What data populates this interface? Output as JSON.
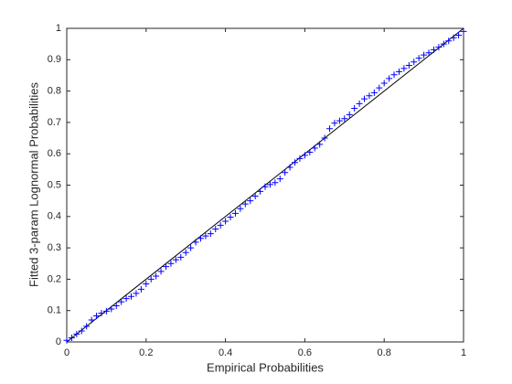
{
  "chart_data": {
    "type": "scatter",
    "xlabel": "Empirical Probabilities",
    "ylabel": "Fitted 3-param Lognormal Probabilities",
    "xlim": [
      0,
      1
    ],
    "ylim": [
      0,
      1
    ],
    "xticks": [
      0,
      0.2,
      0.4,
      0.6,
      0.8,
      1
    ],
    "yticks": [
      0,
      0.1,
      0.2,
      0.3,
      0.4,
      0.5,
      0.6,
      0.7,
      0.8,
      0.9,
      1
    ],
    "grid": false,
    "reference_line": {
      "x": [
        0,
        1
      ],
      "y": [
        0,
        1
      ],
      "color": "#000000"
    },
    "series": [
      {
        "name": "Data",
        "color": "#0000ff",
        "marker": "+",
        "x": [
          0,
          0.0125,
          0.025,
          0.0375,
          0.05,
          0.0625,
          0.075,
          0.0875,
          0.1,
          0.1125,
          0.125,
          0.1375,
          0.15,
          0.1625,
          0.175,
          0.1875,
          0.2,
          0.2125,
          0.225,
          0.2375,
          0.25,
          0.2625,
          0.275,
          0.2875,
          0.3,
          0.3125,
          0.325,
          0.3375,
          0.35,
          0.3625,
          0.375,
          0.3875,
          0.4,
          0.4125,
          0.425,
          0.4375,
          0.45,
          0.4625,
          0.475,
          0.4875,
          0.5,
          0.5125,
          0.525,
          0.5375,
          0.55,
          0.5625,
          0.575,
          0.5875,
          0.6,
          0.6125,
          0.625,
          0.6375,
          0.65,
          0.6625,
          0.675,
          0.6875,
          0.7,
          0.7125,
          0.725,
          0.7375,
          0.75,
          0.7625,
          0.775,
          0.7875,
          0.8,
          0.8125,
          0.825,
          0.8375,
          0.85,
          0.8625,
          0.875,
          0.8875,
          0.9,
          0.9125,
          0.925,
          0.9375,
          0.95,
          0.9625,
          0.975,
          0.9875,
          1
        ],
        "values": [
          0.005,
          0.013,
          0.025,
          0.035,
          0.05,
          0.07,
          0.083,
          0.092,
          0.098,
          0.105,
          0.115,
          0.128,
          0.138,
          0.145,
          0.155,
          0.168,
          0.185,
          0.2,
          0.21,
          0.225,
          0.24,
          0.25,
          0.262,
          0.27,
          0.285,
          0.3,
          0.318,
          0.33,
          0.338,
          0.345,
          0.36,
          0.372,
          0.385,
          0.398,
          0.41,
          0.425,
          0.44,
          0.45,
          0.465,
          0.48,
          0.495,
          0.502,
          0.508,
          0.52,
          0.54,
          0.557,
          0.572,
          0.585,
          0.595,
          0.605,
          0.618,
          0.63,
          0.65,
          0.68,
          0.698,
          0.705,
          0.712,
          0.725,
          0.745,
          0.76,
          0.775,
          0.785,
          0.795,
          0.81,
          0.825,
          0.84,
          0.852,
          0.862,
          0.872,
          0.882,
          0.893,
          0.905,
          0.915,
          0.922,
          0.932,
          0.94,
          0.95,
          0.96,
          0.97,
          0.978,
          0.99
        ]
      }
    ]
  }
}
